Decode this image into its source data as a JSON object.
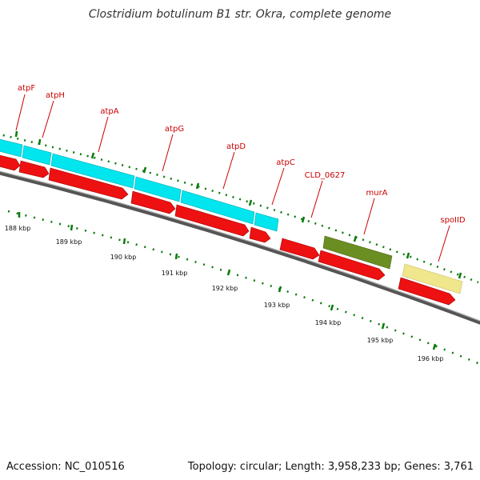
{
  "title": "Clostridium botulinum B1 str. Okra, complete genome",
  "footer": {
    "accession": "Accession: NC_010516",
    "summary": "Topology: circular; Length: 3,958,233 bp; Genes: 3,761"
  },
  "colors": {
    "cds_forward": "#00e5ee",
    "cds_reverse": "#ee1111",
    "olive": "#6b8e23",
    "khaki": "#f0e68c",
    "backbone": "#777777",
    "tick": "#0a7a0a",
    "label": "#cc0000"
  },
  "genes": [
    {
      "name": "atpF"
    },
    {
      "name": "atpH"
    },
    {
      "name": "atpA"
    },
    {
      "name": "atpG"
    },
    {
      "name": "atpD"
    },
    {
      "name": "atpC"
    },
    {
      "name": "CLD_0627"
    },
    {
      "name": "murA"
    },
    {
      "name": "spoIID"
    }
  ],
  "kbp_ticks": [
    {
      "label": "188 kbp"
    },
    {
      "label": "189 kbp"
    },
    {
      "label": "190 kbp"
    },
    {
      "label": "191 kbp"
    },
    {
      "label": "192 kbp"
    },
    {
      "label": "193 kbp"
    },
    {
      "label": "194 kbp"
    },
    {
      "label": "195 kbp"
    },
    {
      "label": "196 kbp"
    }
  ]
}
